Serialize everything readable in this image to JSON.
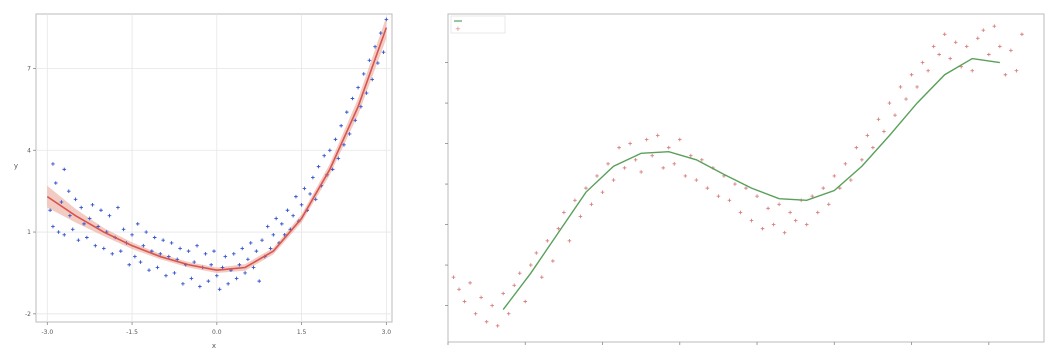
{
  "chart_data": [
    {
      "type": "scatter",
      "title": "",
      "xlabel": "x",
      "ylabel": "y",
      "xlim": [
        -3.2,
        3.1
      ],
      "ylim": [
        -2.3,
        9.0
      ],
      "grid": true,
      "x_ticks": [
        -3,
        -1.5,
        0,
        1.5,
        3
      ],
      "x_tick_labels": [
        "-3.0",
        "-1.5",
        "0.0",
        "1.5",
        "3.0"
      ],
      "y_ticks": [
        -2,
        1,
        4,
        7
      ],
      "y_tick_labels": [
        "-2",
        "1",
        "4",
        "7"
      ],
      "series": [
        {
          "name": "",
          "kind": "scatter",
          "color": "#3355cc",
          "marker": "plus",
          "points": [
            [
              -2.95,
              1.8
            ],
            [
              -2.9,
              3.5
            ],
            [
              -2.9,
              1.2
            ],
            [
              -2.85,
              2.8
            ],
            [
              -2.8,
              1.0
            ],
            [
              -2.75,
              2.1
            ],
            [
              -2.7,
              3.3
            ],
            [
              -2.7,
              0.9
            ],
            [
              -2.62,
              2.5
            ],
            [
              -2.6,
              1.6
            ],
            [
              -2.55,
              1.1
            ],
            [
              -2.5,
              2.2
            ],
            [
              -2.45,
              0.7
            ],
            [
              -2.4,
              1.9
            ],
            [
              -2.35,
              1.3
            ],
            [
              -2.3,
              0.8
            ],
            [
              -2.25,
              1.5
            ],
            [
              -2.2,
              2.0
            ],
            [
              -2.15,
              0.5
            ],
            [
              -2.1,
              1.2
            ],
            [
              -2.05,
              1.8
            ],
            [
              -2.0,
              0.4
            ],
            [
              -1.95,
              1.0
            ],
            [
              -1.9,
              1.6
            ],
            [
              -1.85,
              0.2
            ],
            [
              -1.8,
              0.8
            ],
            [
              -1.75,
              1.9
            ],
            [
              -1.7,
              0.3
            ],
            [
              -1.65,
              1.1
            ],
            [
              -1.6,
              0.6
            ],
            [
              -1.55,
              -0.2
            ],
            [
              -1.5,
              0.9
            ],
            [
              -1.45,
              0.1
            ],
            [
              -1.4,
              1.3
            ],
            [
              -1.35,
              -0.1
            ],
            [
              -1.3,
              0.5
            ],
            [
              -1.25,
              1.0
            ],
            [
              -1.2,
              -0.4
            ],
            [
              -1.15,
              0.3
            ],
            [
              -1.1,
              0.8
            ],
            [
              -1.05,
              -0.3
            ],
            [
              -1.0,
              0.2
            ],
            [
              -0.95,
              0.7
            ],
            [
              -0.9,
              -0.6
            ],
            [
              -0.85,
              0.1
            ],
            [
              -0.8,
              0.6
            ],
            [
              -0.75,
              -0.5
            ],
            [
              -0.7,
              0.0
            ],
            [
              -0.65,
              0.4
            ],
            [
              -0.6,
              -0.9
            ],
            [
              -0.55,
              -0.2
            ],
            [
              -0.5,
              0.3
            ],
            [
              -0.45,
              -0.7
            ],
            [
              -0.4,
              -0.1
            ],
            [
              -0.35,
              0.5
            ],
            [
              -0.3,
              -1.0
            ],
            [
              -0.25,
              -0.3
            ],
            [
              -0.2,
              0.2
            ],
            [
              -0.15,
              -0.8
            ],
            [
              -0.1,
              -0.2
            ],
            [
              -0.05,
              0.3
            ],
            [
              0.0,
              -0.6
            ],
            [
              0.05,
              -1.1
            ],
            [
              0.1,
              -0.3
            ],
            [
              0.15,
              0.1
            ],
            [
              0.2,
              -0.9
            ],
            [
              0.25,
              -0.4
            ],
            [
              0.3,
              0.2
            ],
            [
              0.35,
              -0.7
            ],
            [
              0.4,
              -0.2
            ],
            [
              0.45,
              0.4
            ],
            [
              0.5,
              -0.5
            ],
            [
              0.55,
              0.0
            ],
            [
              0.6,
              0.6
            ],
            [
              0.65,
              -0.3
            ],
            [
              0.7,
              0.3
            ],
            [
              0.75,
              -0.8
            ],
            [
              0.8,
              0.7
            ],
            [
              0.85,
              0.1
            ],
            [
              0.9,
              1.2
            ],
            [
              0.95,
              0.4
            ],
            [
              1.0,
              0.9
            ],
            [
              1.05,
              1.5
            ],
            [
              1.1,
              0.6
            ],
            [
              1.15,
              1.3
            ],
            [
              1.2,
              0.9
            ],
            [
              1.25,
              1.8
            ],
            [
              1.3,
              1.1
            ],
            [
              1.35,
              1.6
            ],
            [
              1.4,
              2.3
            ],
            [
              1.45,
              1.4
            ],
            [
              1.5,
              2.0
            ],
            [
              1.55,
              2.6
            ],
            [
              1.6,
              1.8
            ],
            [
              1.65,
              2.4
            ],
            [
              1.7,
              3.0
            ],
            [
              1.75,
              2.2
            ],
            [
              1.8,
              3.4
            ],
            [
              1.85,
              2.7
            ],
            [
              1.9,
              3.8
            ],
            [
              1.95,
              3.1
            ],
            [
              2.0,
              4.0
            ],
            [
              2.05,
              3.3
            ],
            [
              2.1,
              4.4
            ],
            [
              2.15,
              3.7
            ],
            [
              2.2,
              4.9
            ],
            [
              2.25,
              4.2
            ],
            [
              2.3,
              5.4
            ],
            [
              2.35,
              4.6
            ],
            [
              2.4,
              5.9
            ],
            [
              2.45,
              5.1
            ],
            [
              2.5,
              6.3
            ],
            [
              2.55,
              5.6
            ],
            [
              2.6,
              6.8
            ],
            [
              2.65,
              6.1
            ],
            [
              2.7,
              7.3
            ],
            [
              2.75,
              6.6
            ],
            [
              2.8,
              7.8
            ],
            [
              2.85,
              7.2
            ],
            [
              2.9,
              8.3
            ],
            [
              2.95,
              7.6
            ],
            [
              3.0,
              8.8
            ]
          ]
        },
        {
          "name": "",
          "kind": "line",
          "color": "#d9534f",
          "band_color": "#e8a090",
          "x": [
            -3.0,
            -2.5,
            -2.0,
            -1.5,
            -1.0,
            -0.5,
            0.0,
            0.5,
            1.0,
            1.5,
            2.0,
            2.5,
            3.0
          ],
          "y": [
            2.3,
            1.6,
            1.0,
            0.5,
            0.1,
            -0.2,
            -0.4,
            -0.3,
            0.3,
            1.5,
            3.3,
            5.6,
            8.5
          ],
          "band_lower": [
            1.9,
            1.35,
            0.85,
            0.38,
            0.0,
            -0.3,
            -0.5,
            -0.42,
            0.18,
            1.35,
            3.1,
            5.3,
            8.1
          ],
          "band_upper": [
            2.7,
            1.85,
            1.15,
            0.62,
            0.2,
            -0.1,
            -0.3,
            -0.18,
            0.42,
            1.65,
            3.5,
            5.9,
            8.9
          ]
        }
      ]
    },
    {
      "type": "line",
      "title": "",
      "xlabel": "",
      "ylabel": "",
      "xlim": [
        0.0,
        10.8
      ],
      "ylim": [
        -1.45,
        2.6
      ],
      "grid": false,
      "x_ticks": [
        0,
        1.4,
        2.8,
        4.2,
        5.6,
        7.0,
        8.4,
        9.8
      ],
      "x_tick_labels": [
        "",
        "",
        "",
        "",
        "",
        "",
        "",
        ""
      ],
      "y_ticks": [
        -1.0,
        -0.5,
        0.0,
        0.5,
        1.0,
        1.5,
        2.0
      ],
      "y_tick_labels": [
        "",
        "",
        "",
        "",
        "",
        "",
        ""
      ],
      "legend_position": "upper-left",
      "legend_entries": [
        "",
        ""
      ],
      "series": [
        {
          "name": "",
          "kind": "line",
          "color": "#5aa05a",
          "x": [
            1.0,
            1.5,
            2.0,
            2.5,
            3.0,
            3.5,
            4.0,
            4.5,
            5.0,
            5.5,
            6.0,
            6.5,
            7.0,
            7.5,
            8.0,
            8.5,
            9.0,
            9.5,
            10.0
          ],
          "y": [
            -1.05,
            -0.6,
            -0.1,
            0.4,
            0.72,
            0.88,
            0.9,
            0.8,
            0.62,
            0.45,
            0.32,
            0.3,
            0.42,
            0.72,
            1.1,
            1.5,
            1.85,
            2.05,
            2.0
          ]
        },
        {
          "name": "",
          "kind": "scatter",
          "color": "#d98080",
          "marker": "plus",
          "points": [
            [
              0.1,
              -0.65
            ],
            [
              0.2,
              -0.8
            ],
            [
              0.3,
              -0.95
            ],
            [
              0.4,
              -0.72
            ],
            [
              0.5,
              -1.1
            ],
            [
              0.6,
              -0.9
            ],
            [
              0.7,
              -1.2
            ],
            [
              0.8,
              -1.0
            ],
            [
              0.9,
              -1.25
            ],
            [
              1.0,
              -0.85
            ],
            [
              1.1,
              -1.1
            ],
            [
              1.2,
              -0.75
            ],
            [
              1.3,
              -0.6
            ],
            [
              1.4,
              -0.95
            ],
            [
              1.5,
              -0.5
            ],
            [
              1.6,
              -0.35
            ],
            [
              1.7,
              -0.65
            ],
            [
              1.8,
              -0.2
            ],
            [
              1.9,
              -0.45
            ],
            [
              2.0,
              -0.05
            ],
            [
              2.1,
              0.15
            ],
            [
              2.2,
              -0.2
            ],
            [
              2.3,
              0.3
            ],
            [
              2.4,
              0.1
            ],
            [
              2.5,
              0.45
            ],
            [
              2.6,
              0.25
            ],
            [
              2.7,
              0.6
            ],
            [
              2.8,
              0.4
            ],
            [
              2.9,
              0.75
            ],
            [
              3.0,
              0.55
            ],
            [
              3.1,
              0.95
            ],
            [
              3.2,
              0.7
            ],
            [
              3.3,
              1.0
            ],
            [
              3.4,
              0.8
            ],
            [
              3.5,
              0.65
            ],
            [
              3.6,
              1.05
            ],
            [
              3.7,
              0.85
            ],
            [
              3.8,
              1.1
            ],
            [
              3.9,
              0.7
            ],
            [
              4.0,
              0.95
            ],
            [
              4.1,
              0.75
            ],
            [
              4.2,
              1.05
            ],
            [
              4.3,
              0.6
            ],
            [
              4.4,
              0.85
            ],
            [
              4.5,
              0.55
            ],
            [
              4.6,
              0.8
            ],
            [
              4.7,
              0.45
            ],
            [
              4.8,
              0.7
            ],
            [
              4.9,
              0.35
            ],
            [
              5.0,
              0.6
            ],
            [
              5.1,
              0.3
            ],
            [
              5.2,
              0.5
            ],
            [
              5.3,
              0.15
            ],
            [
              5.4,
              0.45
            ],
            [
              5.5,
              0.05
            ],
            [
              5.6,
              0.35
            ],
            [
              5.7,
              -0.05
            ],
            [
              5.8,
              0.2
            ],
            [
              5.9,
              0.0
            ],
            [
              6.0,
              0.25
            ],
            [
              6.1,
              -0.1
            ],
            [
              6.2,
              0.15
            ],
            [
              6.3,
              0.05
            ],
            [
              6.4,
              0.3
            ],
            [
              6.5,
              0.0
            ],
            [
              6.6,
              0.35
            ],
            [
              6.7,
              0.15
            ],
            [
              6.8,
              0.45
            ],
            [
              6.9,
              0.25
            ],
            [
              7.0,
              0.6
            ],
            [
              7.1,
              0.45
            ],
            [
              7.2,
              0.75
            ],
            [
              7.3,
              0.55
            ],
            [
              7.4,
              0.95
            ],
            [
              7.5,
              0.8
            ],
            [
              7.6,
              1.1
            ],
            [
              7.7,
              0.95
            ],
            [
              7.8,
              1.3
            ],
            [
              7.9,
              1.15
            ],
            [
              8.0,
              1.5
            ],
            [
              8.1,
              1.35
            ],
            [
              8.2,
              1.7
            ],
            [
              8.3,
              1.55
            ],
            [
              8.4,
              1.85
            ],
            [
              8.5,
              1.7
            ],
            [
              8.6,
              2.0
            ],
            [
              8.7,
              1.9
            ],
            [
              8.8,
              2.2
            ],
            [
              8.9,
              2.1
            ],
            [
              9.0,
              2.35
            ],
            [
              9.1,
              2.05
            ],
            [
              9.2,
              2.25
            ],
            [
              9.3,
              1.95
            ],
            [
              9.4,
              2.2
            ],
            [
              9.5,
              1.9
            ],
            [
              9.6,
              2.3
            ],
            [
              9.7,
              2.4
            ],
            [
              9.8,
              2.1
            ],
            [
              9.9,
              2.45
            ],
            [
              10.0,
              2.2
            ],
            [
              10.1,
              1.85
            ],
            [
              10.2,
              2.15
            ],
            [
              10.3,
              1.9
            ],
            [
              10.4,
              2.35
            ]
          ]
        }
      ]
    }
  ]
}
